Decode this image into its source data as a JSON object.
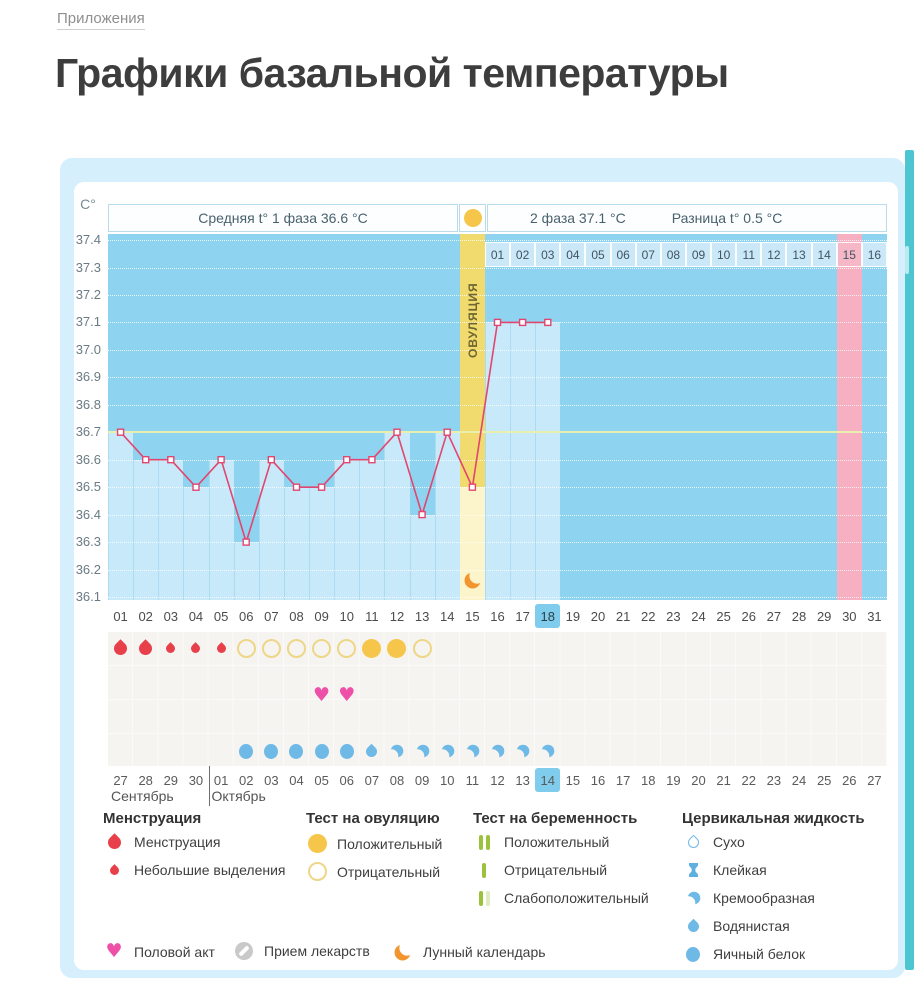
{
  "page": {
    "breadcrumb": "Приложения",
    "title": "Графики базальной температуры"
  },
  "chart_header": {
    "unit": "C°",
    "avg_phase1": "Средняя t° 1 фаза 36.6 °C",
    "phase2": "2 фаза 37.1 °C",
    "diff": "Разница t° 0.5 °C",
    "ovulation_label": "ОВУЛЯЦИЯ"
  },
  "chart_data": {
    "type": "line",
    "ylabel": "C°",
    "ylim": [
      36.1,
      37.4
    ],
    "yticks": [
      "37.4",
      "37.3",
      "37.2",
      "37.1",
      "37.0",
      "36.9",
      "36.8",
      "36.7",
      "36.6",
      "36.5",
      "36.4",
      "36.3",
      "36.2",
      "36.1"
    ],
    "days": [
      "01",
      "02",
      "03",
      "04",
      "05",
      "06",
      "07",
      "08",
      "09",
      "10",
      "11",
      "12",
      "13",
      "14",
      "15",
      "16",
      "17",
      "18",
      "19",
      "20",
      "21",
      "22",
      "23",
      "24",
      "25",
      "26",
      "27",
      "28",
      "29",
      "30",
      "31"
    ],
    "temps": [
      36.7,
      36.6,
      36.6,
      36.5,
      36.6,
      36.3,
      36.6,
      36.5,
      36.5,
      36.6,
      36.6,
      36.7,
      36.4,
      36.7,
      36.5,
      37.1,
      37.1,
      37.1,
      null,
      null,
      null,
      null,
      null,
      null,
      null,
      null,
      null,
      null,
      null,
      null,
      null
    ],
    "coverline": 36.7,
    "coverline_end_day": 30,
    "ovulation_day": 15,
    "ovulation_day_temp": 36.5,
    "highlight_day": 18,
    "pink_day": 30,
    "phase2_cells": [
      "01",
      "02",
      "03",
      "04",
      "05",
      "06",
      "07",
      "08",
      "09",
      "10",
      "11",
      "12",
      "13",
      "14",
      "15",
      "16"
    ],
    "phase2_pink_cell": "15",
    "menstruation_heavy_days": [
      1,
      2
    ],
    "menstruation_light_days": [
      3,
      4,
      5
    ],
    "ovulation_test_negative_days": [
      6,
      7,
      8,
      9,
      10,
      13
    ],
    "ovulation_test_positive_days": [
      11,
      12
    ],
    "intercourse_days": [
      9,
      10
    ],
    "fluid_eggwhite_days": [
      6,
      7,
      8,
      9,
      10
    ],
    "fluid_watery_days": [
      11
    ],
    "fluid_creamy_days": [
      12,
      13,
      14,
      15,
      16,
      17,
      18
    ],
    "dates": [
      {
        "label": "27"
      },
      {
        "label": "28"
      },
      {
        "label": "29"
      },
      {
        "label": "30",
        "red": true
      },
      {
        "label": "01",
        "red": true
      },
      {
        "label": "02"
      },
      {
        "label": "03"
      },
      {
        "label": "04"
      },
      {
        "label": "05"
      },
      {
        "label": "06"
      },
      {
        "label": "07",
        "red": true
      },
      {
        "label": "08",
        "red": true
      },
      {
        "label": "09"
      },
      {
        "label": "10"
      },
      {
        "label": "11"
      },
      {
        "label": "12"
      },
      {
        "label": "13"
      },
      {
        "label": "14",
        "today": true
      },
      {
        "label": "15",
        "red": true
      },
      {
        "label": "16"
      },
      {
        "label": "17"
      },
      {
        "label": "18"
      },
      {
        "label": "19"
      },
      {
        "label": "20"
      },
      {
        "label": "21",
        "red": true
      },
      {
        "label": "22",
        "red": true
      },
      {
        "label": "23"
      },
      {
        "label": "24"
      },
      {
        "label": "25"
      },
      {
        "label": "26"
      },
      {
        "label": "27"
      }
    ],
    "months": [
      {
        "label": "Сентябрь",
        "from_day": 1
      },
      {
        "label": "Октябрь",
        "from_day": 5
      }
    ]
  },
  "legend": {
    "sections": [
      {
        "title": "Менструация",
        "items": [
          {
            "icon": "drop-large-red",
            "label": "Менструация"
          },
          {
            "icon": "drop-small-red",
            "label": "Небольшие выделения"
          }
        ]
      },
      {
        "title": "Тест на овуляцию",
        "items": [
          {
            "icon": "circle-filled-yellow",
            "label": "Положительный"
          },
          {
            "icon": "circle-outline-yellow",
            "label": "Отрицательный"
          }
        ]
      },
      {
        "title": "Тест на беременность",
        "items": [
          {
            "icon": "bars-two-green",
            "label": "Положительный"
          },
          {
            "icon": "bar-one-green",
            "label": "Отрицательный"
          },
          {
            "icon": "bars-weak-green",
            "label": "Слабоположительный"
          }
        ]
      },
      {
        "title": "Цервикальная жидкость",
        "items": [
          {
            "icon": "drop-outline-blue",
            "label": "Сухо"
          },
          {
            "icon": "ibeam-blue",
            "label": "Клейкая"
          },
          {
            "icon": "comma-blue",
            "label": "Кремообразная"
          },
          {
            "icon": "drop-filled-blue",
            "label": "Водянистая"
          },
          {
            "icon": "drop-round-blue",
            "label": "Яичный белок"
          }
        ]
      }
    ],
    "footer_items": [
      {
        "icon": "heart-pink",
        "label": "Половой акт"
      },
      {
        "icon": "pill-gray",
        "label": "Прием лекарств"
      },
      {
        "icon": "moon-orange",
        "label": "Лунный календарь"
      }
    ]
  },
  "colors": {
    "temp_line": "#e0466f",
    "plot_bg": "#8ed4f0",
    "fill_blue": "#c8e9f9",
    "ovu_yellow": "#f1da6e",
    "ovu_pale": "#fcf4cb",
    "pink_col": "#f7afc2",
    "teal": "#4ec6d2",
    "red_drop": "#e8404a",
    "test_yellow": "#f6c64b",
    "heart_pink": "#ee4fa7",
    "fluid_blue": "#6fb9e6",
    "green_bar": "#9cc23c",
    "hl_blue": "#7fccec",
    "coverline": "#e9f0ad",
    "moon_orange": "#f2952f"
  }
}
